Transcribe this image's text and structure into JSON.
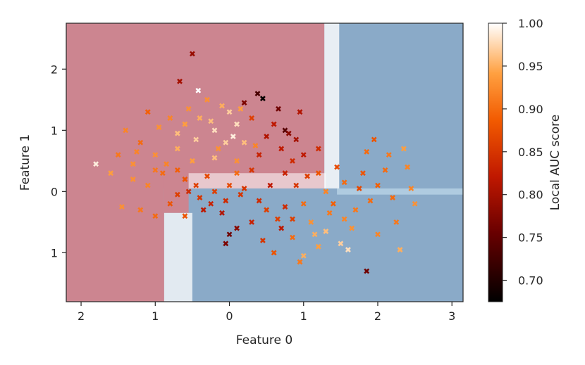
{
  "chart_data": {
    "type": "scatter",
    "title": "",
    "xlabel": "Feature 0",
    "ylabel": "Feature 1",
    "xlim": [
      -2.2,
      3.15
    ],
    "ylim": [
      -1.8,
      2.75
    ],
    "x_ticks": [
      -2,
      -1,
      0,
      1,
      2,
      3
    ],
    "y_ticks": [
      -1,
      0,
      1,
      2
    ],
    "x_tick_labels": [
      "2",
      "1",
      "0",
      "1",
      "2",
      "3"
    ],
    "y_tick_labels": [
      "1",
      "0",
      "1",
      "2"
    ],
    "grid": false,
    "marker": "x",
    "background": {
      "description": "decision-region map",
      "class_0_color": "#cc8590",
      "class_1_color": "#8aaac8",
      "boundary_color": "#ffffff"
    },
    "colorbar": {
      "label": "Local AUC score",
      "range": [
        0.675,
        1.0
      ],
      "ticks": [
        0.7,
        0.75,
        0.8,
        0.85,
        0.9,
        0.95,
        1.0
      ],
      "tick_labels": [
        "0.70",
        "0.75",
        "0.80",
        "0.85",
        "0.90",
        "0.95",
        "1.00"
      ],
      "colormap": "gist_heat"
    },
    "points": [
      [
        -0.5,
        2.25,
        0.79
      ],
      [
        -0.67,
        1.8,
        0.8
      ],
      [
        -0.42,
        1.65,
        1.0
      ],
      [
        -1.8,
        0.45,
        0.99
      ],
      [
        0.45,
        1.52,
        0.68
      ],
      [
        0.38,
        1.6,
        0.73
      ],
      [
        0.2,
        1.45,
        0.77
      ],
      [
        0.66,
        1.35,
        0.76
      ],
      [
        0.95,
        1.3,
        0.81
      ],
      [
        0.75,
        1.0,
        0.74
      ],
      [
        0.8,
        0.95,
        0.78
      ],
      [
        0.9,
        0.85,
        0.8
      ],
      [
        0.6,
        1.1,
        0.82
      ],
      [
        0.5,
        0.9,
        0.81
      ],
      [
        0.7,
        0.7,
        0.82
      ],
      [
        1.0,
        0.6,
        0.82
      ],
      [
        1.2,
        0.7,
        0.84
      ],
      [
        0.4,
        0.6,
        0.83
      ],
      [
        0.3,
        1.2,
        0.86
      ],
      [
        0.85,
        0.5,
        0.84
      ],
      [
        -0.3,
        1.5,
        0.93
      ],
      [
        -0.1,
        1.4,
        0.95
      ],
      [
        0.0,
        1.3,
        0.97
      ],
      [
        0.1,
        1.1,
        0.98
      ],
      [
        -0.2,
        1.0,
        0.98
      ],
      [
        0.05,
        0.9,
        0.99
      ],
      [
        -0.05,
        0.8,
        0.97
      ],
      [
        0.2,
        0.8,
        0.96
      ],
      [
        -0.4,
        1.2,
        0.95
      ],
      [
        -0.6,
        1.1,
        0.94
      ],
      [
        -0.8,
        1.2,
        0.92
      ],
      [
        -1.1,
        1.3,
        0.89
      ],
      [
        -1.4,
        1.0,
        0.92
      ],
      [
        -1.2,
        0.8,
        0.9
      ],
      [
        -1.5,
        0.6,
        0.91
      ],
      [
        -1.0,
        0.6,
        0.93
      ],
      [
        -0.7,
        0.7,
        0.95
      ],
      [
        -0.5,
        0.5,
        0.94
      ],
      [
        -0.2,
        0.55,
        0.96
      ],
      [
        0.1,
        0.5,
        0.93
      ],
      [
        -1.6,
        0.3,
        0.94
      ],
      [
        -1.3,
        0.2,
        0.93
      ],
      [
        -1.1,
        0.1,
        0.92
      ],
      [
        -0.9,
        0.3,
        0.9
      ],
      [
        -0.6,
        0.2,
        0.88
      ],
      [
        -0.3,
        0.25,
        0.87
      ],
      [
        -0.8,
        -0.2,
        0.88
      ],
      [
        -1.2,
        -0.3,
        0.91
      ],
      [
        -1.0,
        -0.4,
        0.9
      ],
      [
        -0.7,
        -0.05,
        0.86
      ],
      [
        -0.55,
        0.0,
        0.84
      ],
      [
        -0.4,
        -0.1,
        0.85
      ],
      [
        -0.2,
        0.0,
        0.86
      ],
      [
        0.0,
        0.1,
        0.87
      ],
      [
        0.15,
        -0.05,
        0.85
      ],
      [
        -0.35,
        -0.3,
        0.82
      ],
      [
        -0.1,
        -0.35,
        0.81
      ],
      [
        0.1,
        -0.6,
        0.78
      ],
      [
        0.0,
        -0.7,
        0.76
      ],
      [
        -0.05,
        -0.85,
        0.77
      ],
      [
        0.3,
        -0.5,
        0.83
      ],
      [
        0.5,
        -0.3,
        0.86
      ],
      [
        0.7,
        -0.6,
        0.82
      ],
      [
        0.85,
        -0.45,
        0.86
      ],
      [
        0.6,
        -1.0,
        0.88
      ],
      [
        1.0,
        -0.2,
        0.9
      ],
      [
        1.1,
        -0.5,
        0.93
      ],
      [
        1.3,
        -0.65,
        0.96
      ],
      [
        1.5,
        -0.85,
        0.97
      ],
      [
        1.6,
        -0.95,
        0.98
      ],
      [
        1.2,
        -0.9,
        0.94
      ],
      [
        1.0,
        -1.05,
        0.95
      ],
      [
        0.95,
        -1.15,
        0.91
      ],
      [
        1.3,
        0.0,
        0.92
      ],
      [
        1.55,
        0.15,
        0.9
      ],
      [
        1.8,
        0.3,
        0.88
      ],
      [
        2.0,
        0.1,
        0.89
      ],
      [
        2.2,
        -0.1,
        0.9
      ],
      [
        2.4,
        0.4,
        0.92
      ],
      [
        2.15,
        0.6,
        0.91
      ],
      [
        1.85,
        0.65,
        0.9
      ],
      [
        2.5,
        -0.2,
        0.93
      ],
      [
        2.25,
        -0.5,
        0.91
      ],
      [
        2.3,
        -0.95,
        0.95
      ],
      [
        1.85,
        -1.3,
        0.76
      ],
      [
        2.0,
        -0.7,
        0.92
      ],
      [
        1.7,
        -0.3,
        0.91
      ],
      [
        1.45,
        0.4,
        0.87
      ],
      [
        1.95,
        0.85,
        0.88
      ],
      [
        2.35,
        0.7,
        0.94
      ],
      [
        1.65,
        -0.6,
        0.93
      ],
      [
        1.4,
        -0.2,
        0.89
      ],
      [
        1.05,
        0.25,
        0.86
      ],
      [
        0.75,
        0.3,
        0.83
      ],
      [
        0.55,
        0.1,
        0.82
      ],
      [
        0.3,
        0.35,
        0.85
      ],
      [
        0.1,
        0.3,
        0.9
      ],
      [
        -0.15,
        0.7,
        0.93
      ],
      [
        0.35,
        0.75,
        0.92
      ],
      [
        -0.45,
        0.85,
        0.97
      ],
      [
        -0.7,
        0.95,
        0.96
      ],
      [
        -0.95,
        1.05,
        0.93
      ],
      [
        -0.25,
        1.15,
        0.96
      ],
      [
        0.15,
        1.35,
        0.94
      ],
      [
        -0.55,
        1.35,
        0.93
      ],
      [
        -0.85,
        0.45,
        0.92
      ],
      [
        -1.3,
        0.45,
        0.93
      ],
      [
        -1.45,
        -0.25,
        0.93
      ],
      [
        -0.6,
        -0.4,
        0.88
      ],
      [
        0.45,
        -0.8,
        0.85
      ],
      [
        0.75,
        -0.25,
        0.84
      ],
      [
        0.9,
        0.1,
        0.85
      ],
      [
        1.2,
        0.3,
        0.88
      ],
      [
        1.55,
        -0.45,
        0.92
      ],
      [
        1.9,
        -0.15,
        0.9
      ],
      [
        2.1,
        0.35,
        0.9
      ],
      [
        2.45,
        0.05,
        0.92
      ],
      [
        1.75,
        0.05,
        0.87
      ],
      [
        1.35,
        -0.35,
        0.91
      ],
      [
        1.15,
        -0.7,
        0.95
      ],
      [
        0.85,
        -0.75,
        0.9
      ],
      [
        0.65,
        -0.45,
        0.86
      ],
      [
        0.4,
        -0.15,
        0.84
      ],
      [
        0.2,
        0.05,
        0.85
      ],
      [
        -0.05,
        -0.15,
        0.84
      ],
      [
        -0.25,
        -0.2,
        0.83
      ],
      [
        -0.45,
        0.1,
        0.86
      ],
      [
        -0.7,
        0.35,
        0.89
      ],
      [
        -1.0,
        0.35,
        0.91
      ],
      [
        -1.25,
        0.65,
        0.92
      ]
    ]
  }
}
